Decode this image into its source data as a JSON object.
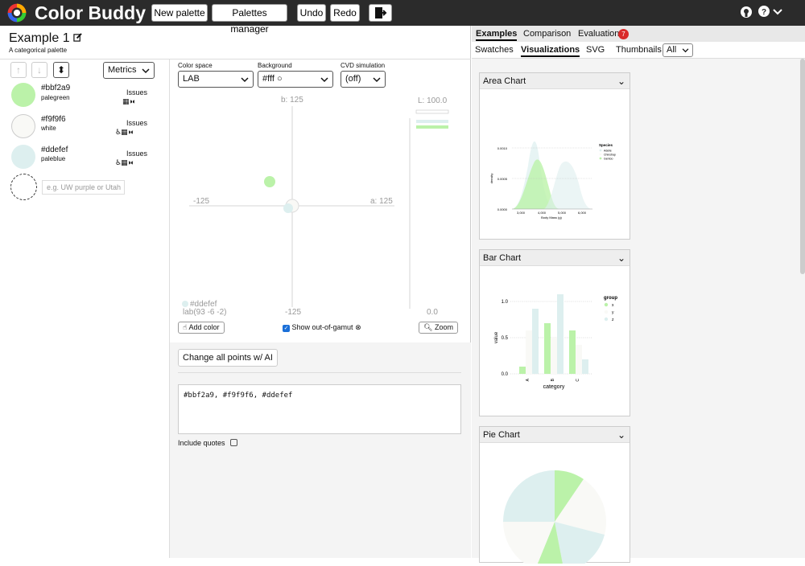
{
  "app": {
    "title": "Color Buddy"
  },
  "toolbar": {
    "new_palette": "New palette",
    "palettes_manager": "Palettes manager",
    "undo": "Undo",
    "redo": "Redo"
  },
  "palette": {
    "title": "Example 1",
    "subtitle": "A categorical palette"
  },
  "left": {
    "metrics_label": "Metrics",
    "issues_label": "Issues",
    "add_placeholder": "e.g. UW purple or Utah"
  },
  "colors": [
    {
      "hex": "#bbf2a9",
      "name": "palegreen",
      "swatch": "#bbf2a9",
      "issue_icons": "▦◑◐"
    },
    {
      "hex": "#f9f9f6",
      "name": "white",
      "swatch": "#f9f9f6",
      "issue_icons": "♿▦◑◐"
    },
    {
      "hex": "#ddefef",
      "name": "paleblue",
      "swatch": "#ddefef",
      "issue_icons": "♿▦◑◐"
    }
  ],
  "controls": {
    "color_space_label": "Color space",
    "color_space": "LAB",
    "background_label": "Background",
    "background": "#fff",
    "cvd_label": "CVD simulation",
    "cvd": "(off)"
  },
  "plot": {
    "b_top": "b: 125",
    "b_bottom": "-125",
    "a_left": "-125",
    "a_right": "a: 125",
    "l_top": "L: 100.0",
    "l_bottom": "0.0",
    "hover_hex": "#ddefef",
    "hover_lab": "lab(93 -6 -2)"
  },
  "plot_buttons": {
    "add_color": "Add color",
    "show_gamut": "Show out-of-gamut",
    "zoom": "Zoom"
  },
  "ai": {
    "button": "Change all points w/ AI",
    "text": "#bbf2a9, #f9f9f6, #ddefef",
    "include_quotes": "Include quotes"
  },
  "right": {
    "tabs": [
      "Examples",
      "Comparison",
      "Evaluation"
    ],
    "evaluation_badge": "7",
    "subtabs": [
      "Swatches",
      "Visualizations",
      "SVG"
    ],
    "thumbnails_label": "Thumbnails",
    "thumbnails_value": "All",
    "cards": [
      "Area Chart",
      "Bar Chart",
      "Pie Chart"
    ]
  },
  "area_chart": {
    "legend_title": "Species",
    "legend": [
      "Adelie",
      "Chinstrap",
      "Gentoo"
    ],
    "yticks": [
      "0.0010",
      "0.0005",
      "0.0000"
    ],
    "xticks": [
      "3,000",
      "4,000",
      "5,000",
      "6,000"
    ],
    "xlabel": "Body Mass (g)",
    "ylabel": "density"
  },
  "bar_chart": {
    "legend_title": "group",
    "legend": [
      "x",
      "y",
      "z"
    ],
    "yticks": [
      "1.0",
      "0.5",
      "0.0"
    ],
    "categories": [
      "A",
      "B",
      "C"
    ],
    "xlabel": "category",
    "ylabel": "value"
  },
  "colors_theme": {
    "accent_badge": "#d92b2b",
    "topbar": "#2b2b2b"
  }
}
